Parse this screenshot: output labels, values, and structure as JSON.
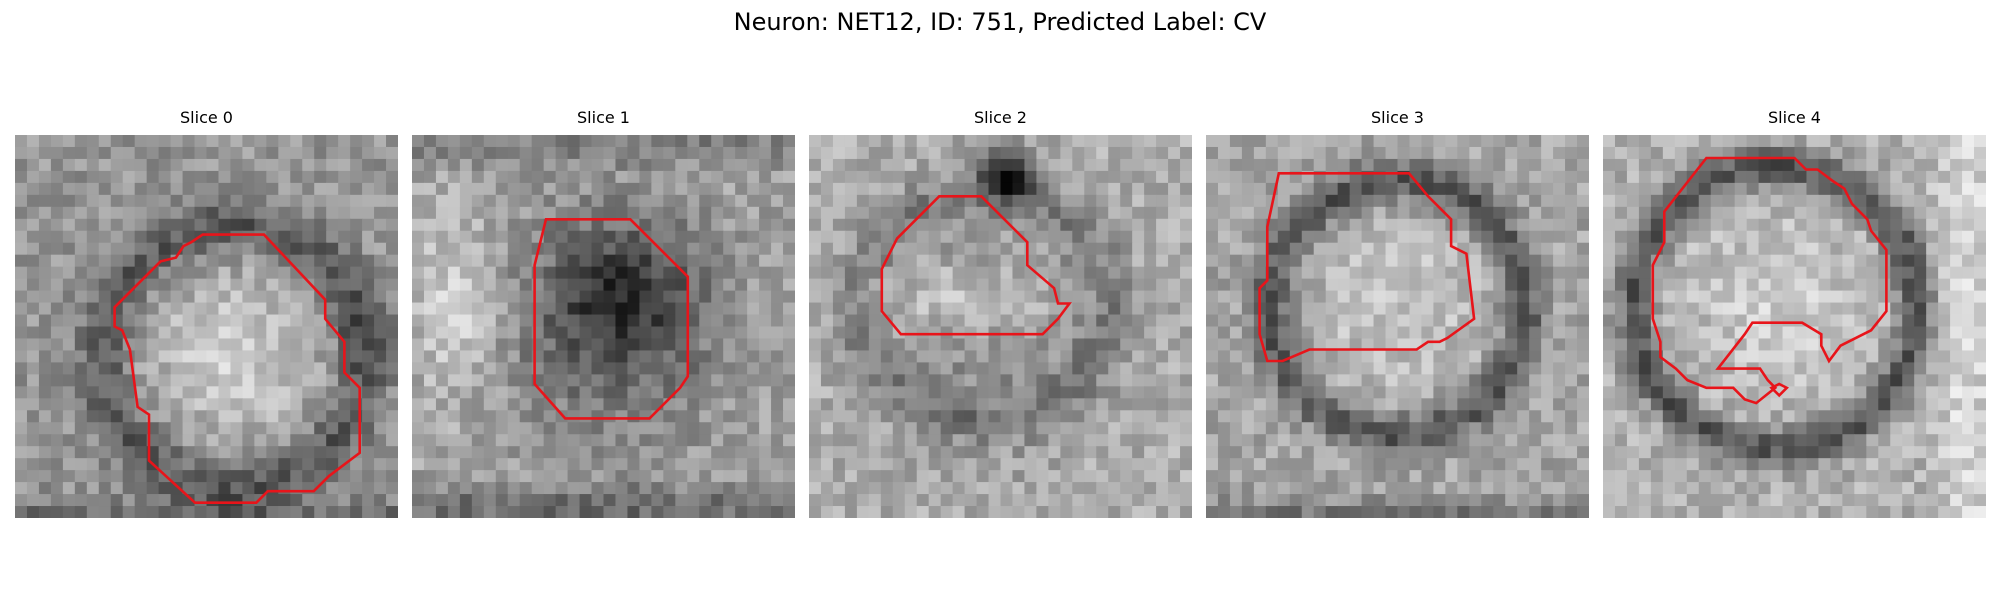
{
  "figure": {
    "title": "Neuron: NET12, ID: 751, Predicted Label: CV"
  },
  "contour_color": "#e8141a",
  "slices": [
    {
      "title": "Slice 0"
    },
    {
      "title": "Slice 1"
    },
    {
      "title": "Slice 2"
    },
    {
      "title": "Slice 3"
    },
    {
      "title": "Slice 4"
    }
  ]
}
